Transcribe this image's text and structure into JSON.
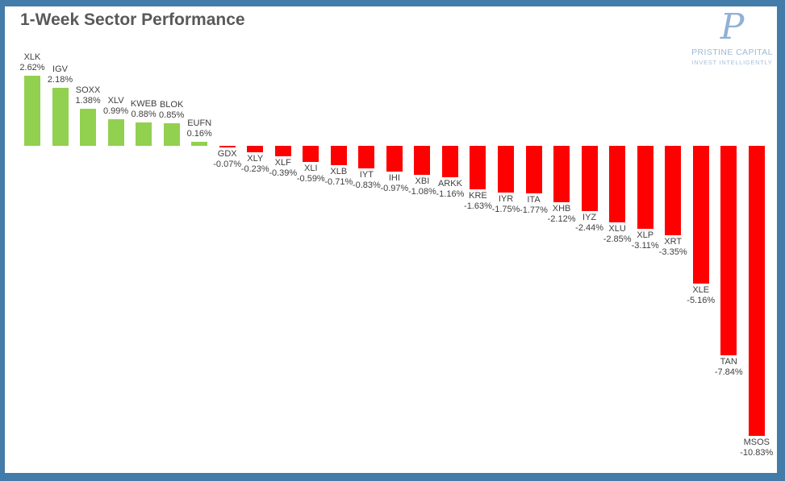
{
  "chart_data": {
    "type": "bar",
    "title": "1-Week Sector Performance",
    "categories": [
      "XLK",
      "IGV",
      "SOXX",
      "XLV",
      "KWEB",
      "BLOK",
      "EUFN",
      "GDX",
      "XLY",
      "XLF",
      "XLI",
      "XLB",
      "IYT",
      "IHI",
      "XBI",
      "ARKK",
      "KRE",
      "IYR",
      "ITA",
      "XHB",
      "IYZ",
      "XLU",
      "XLP",
      "XRT",
      "XLE",
      "TAN",
      "MSOS"
    ],
    "values": [
      2.62,
      2.18,
      1.38,
      0.99,
      0.88,
      0.85,
      0.16,
      -0.07,
      -0.23,
      -0.39,
      -0.59,
      -0.71,
      -0.83,
      -0.97,
      -1.08,
      -1.16,
      -1.63,
      -1.75,
      -1.77,
      -2.12,
      -2.44,
      -2.85,
      -3.11,
      -3.35,
      -5.16,
      -7.84,
      -10.83
    ],
    "value_labels": [
      "2.62%",
      "2.18%",
      "1.38%",
      "0.99%",
      "0.88%",
      "0.85%",
      "0.16%",
      "-0.07%",
      "-0.23%",
      "-0.39%",
      "-0.59%",
      "-0.71%",
      "-0.83%",
      "-0.97%",
      "-1.08%",
      "-1.16%",
      "-1.63%",
      "-1.75%",
      "-1.77%",
      "-2.12%",
      "-2.44%",
      "-2.85%",
      "-3.11%",
      "-3.35%",
      "-5.16%",
      "-7.84%",
      "-10.83%"
    ],
    "xlabel": "",
    "ylabel": "",
    "ylim": [
      -10.83,
      2.62
    ],
    "axes_visible": false,
    "gridlines": false,
    "legend": false,
    "data_label_position": "outside-end, category name above value",
    "bar_colors": {
      "positive": "#92D050",
      "negative": "#FF0000"
    }
  },
  "branding": {
    "monogram": "P",
    "company": "PRISTINE CAPITAL",
    "tagline": "INVEST INTELLIGENTLY",
    "color": "#9CB9D5"
  },
  "frame": {
    "color": "#437CA8"
  },
  "title_color": "#595959"
}
